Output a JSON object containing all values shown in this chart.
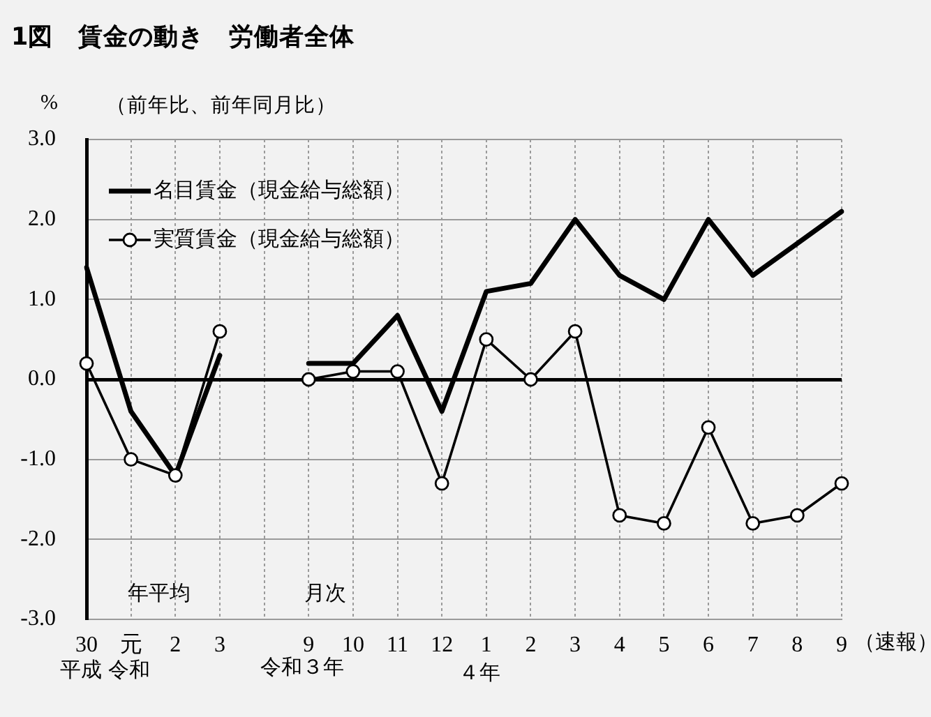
{
  "chart_data": {
    "type": "line",
    "title": "1図　賃金の動き　労働者全体",
    "subtitle": "（前年比、前年同月比）",
    "ylabel": "%",
    "categories": [
      "30",
      "元",
      "2",
      "3",
      null,
      "9",
      "10",
      "11",
      "12",
      "1",
      "2",
      "3",
      "4",
      "5",
      "6",
      "7",
      "8",
      "9"
    ],
    "series": [
      {
        "name": "名目賃金（現金給与総額）",
        "color": "#000000",
        "marker": "none",
        "values": [
          1.4,
          -0.4,
          -1.2,
          0.3,
          null,
          0.2,
          0.2,
          0.8,
          -0.4,
          1.1,
          1.2,
          2.0,
          1.3,
          1.0,
          2.0,
          1.3,
          1.7,
          2.1
        ]
      },
      {
        "name": "実質賃金（現金給与総額）",
        "color": "#000000",
        "marker": "circle",
        "values": [
          0.2,
          -1.0,
          -1.2,
          0.6,
          null,
          0.0,
          0.1,
          0.1,
          -1.3,
          0.5,
          0.0,
          0.6,
          -1.7,
          -1.8,
          -0.6,
          -1.8,
          -1.7,
          -1.3
        ]
      }
    ],
    "ylim": [
      -3,
      3
    ],
    "yticks": [
      {
        "value": -3,
        "label": "-3.0"
      },
      {
        "value": -2,
        "label": "-2.0"
      },
      {
        "value": -1,
        "label": "-1.0"
      },
      {
        "value": 0,
        "label": "0.0"
      },
      {
        "value": 1,
        "label": "1.0"
      },
      {
        "value": 2,
        "label": "2.0"
      },
      {
        "value": 3,
        "label": "3.0"
      }
    ],
    "grid": true,
    "legend": "top left",
    "line_style": "solid",
    "annotations": [
      "年平均",
      "月次",
      "平成",
      "令和",
      "令和３年",
      "４年",
      "（速報）"
    ]
  }
}
